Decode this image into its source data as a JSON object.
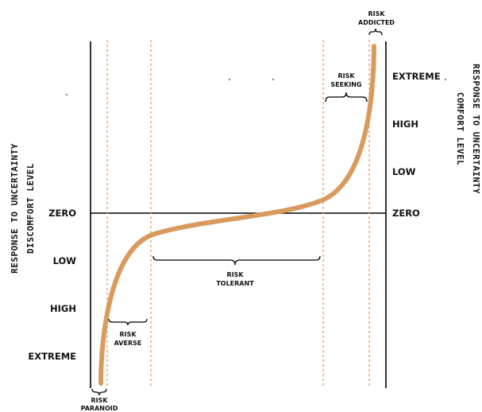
{
  "left_axis": {
    "title_line1": "RESPONSE TO UNCERTAINTY",
    "title_line2": "DISCOMFORT LEVEL",
    "levels": [
      "ZERO",
      "LOW",
      "HIGH",
      "EXTREME"
    ]
  },
  "right_axis": {
    "title_line1": "RESPONSE TO UNCERTAINTY",
    "title_line2": "COMFORT LEVEL",
    "levels": [
      "EXTREME",
      "HIGH",
      "LOW",
      "ZERO"
    ]
  },
  "zones": {
    "paranoid": [
      "RISK",
      "PARANOID"
    ],
    "averse": [
      "RISK",
      "AVERSE"
    ],
    "tolerant": [
      "RISK",
      "TOLERANT"
    ],
    "seeking": [
      "RISK",
      "SEEKING"
    ],
    "addicted": [
      "RISK",
      "ADDICTED"
    ]
  },
  "colors": {
    "curve": "#d99a5e",
    "dashed": "#e3a36b",
    "axis": "#000000",
    "text": "#111111"
  }
}
